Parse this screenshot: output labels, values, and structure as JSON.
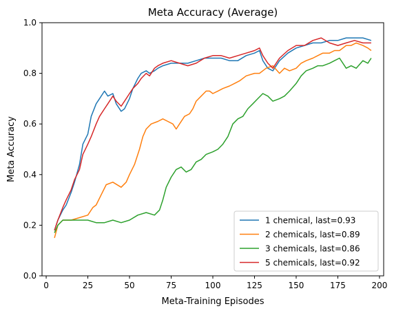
{
  "chart_data": {
    "type": "line",
    "title": "Meta Accuracy (Average)",
    "xlabel": "Meta-Training Episodes",
    "ylabel": "Meta Accuracy",
    "xlim": [
      -2.5,
      202.5
    ],
    "ylim": [
      0.0,
      1.0
    ],
    "xticks": [
      0,
      25,
      50,
      75,
      100,
      125,
      150,
      175,
      200
    ],
    "xtick_labels": [
      "0",
      "25",
      "50",
      "75",
      "100",
      "125",
      "150",
      "175",
      "200"
    ],
    "yticks": [
      0.0,
      0.2,
      0.4,
      0.6,
      0.8,
      1.0
    ],
    "ytick_labels": [
      "0.0",
      "0.2",
      "0.4",
      "0.6",
      "0.8",
      "1.0"
    ],
    "grid": false,
    "legend_position": "lower right",
    "series": [
      {
        "name": "1 chemical, last=0.93",
        "color": "#1f77b4",
        "points": [
          [
            5,
            0.18
          ],
          [
            7,
            0.22
          ],
          [
            10,
            0.26
          ],
          [
            12,
            0.28
          ],
          [
            15,
            0.33
          ],
          [
            17,
            0.37
          ],
          [
            20,
            0.44
          ],
          [
            22,
            0.52
          ],
          [
            25,
            0.56
          ],
          [
            27,
            0.63
          ],
          [
            30,
            0.68
          ],
          [
            32,
            0.7
          ],
          [
            35,
            0.73
          ],
          [
            37,
            0.71
          ],
          [
            40,
            0.72
          ],
          [
            42,
            0.68
          ],
          [
            45,
            0.65
          ],
          [
            47,
            0.66
          ],
          [
            50,
            0.7
          ],
          [
            52,
            0.74
          ],
          [
            55,
            0.78
          ],
          [
            57,
            0.8
          ],
          [
            60,
            0.81
          ],
          [
            62,
            0.8
          ],
          [
            65,
            0.81
          ],
          [
            67,
            0.82
          ],
          [
            70,
            0.83
          ],
          [
            75,
            0.84
          ],
          [
            80,
            0.84
          ],
          [
            85,
            0.84
          ],
          [
            90,
            0.85
          ],
          [
            95,
            0.86
          ],
          [
            100,
            0.86
          ],
          [
            105,
            0.86
          ],
          [
            110,
            0.85
          ],
          [
            115,
            0.85
          ],
          [
            120,
            0.87
          ],
          [
            125,
            0.88
          ],
          [
            128,
            0.89
          ],
          [
            130,
            0.85
          ],
          [
            133,
            0.82
          ],
          [
            136,
            0.81
          ],
          [
            140,
            0.85
          ],
          [
            145,
            0.88
          ],
          [
            150,
            0.9
          ],
          [
            155,
            0.91
          ],
          [
            160,
            0.92
          ],
          [
            165,
            0.92
          ],
          [
            170,
            0.93
          ],
          [
            175,
            0.93
          ],
          [
            180,
            0.94
          ],
          [
            185,
            0.94
          ],
          [
            190,
            0.94
          ],
          [
            195,
            0.93
          ]
        ]
      },
      {
        "name": "2 chemicals, last=0.89",
        "color": "#ff7f0e",
        "points": [
          [
            5,
            0.15
          ],
          [
            7,
            0.2
          ],
          [
            10,
            0.22
          ],
          [
            15,
            0.22
          ],
          [
            20,
            0.23
          ],
          [
            25,
            0.24
          ],
          [
            28,
            0.27
          ],
          [
            30,
            0.28
          ],
          [
            33,
            0.32
          ],
          [
            36,
            0.36
          ],
          [
            40,
            0.37
          ],
          [
            45,
            0.35
          ],
          [
            48,
            0.37
          ],
          [
            50,
            0.4
          ],
          [
            53,
            0.44
          ],
          [
            56,
            0.5
          ],
          [
            58,
            0.55
          ],
          [
            60,
            0.58
          ],
          [
            63,
            0.6
          ],
          [
            67,
            0.61
          ],
          [
            70,
            0.62
          ],
          [
            73,
            0.61
          ],
          [
            76,
            0.6
          ],
          [
            78,
            0.58
          ],
          [
            80,
            0.6
          ],
          [
            83,
            0.63
          ],
          [
            86,
            0.64
          ],
          [
            88,
            0.66
          ],
          [
            90,
            0.69
          ],
          [
            93,
            0.71
          ],
          [
            96,
            0.73
          ],
          [
            98,
            0.73
          ],
          [
            100,
            0.72
          ],
          [
            103,
            0.73
          ],
          [
            106,
            0.74
          ],
          [
            110,
            0.75
          ],
          [
            113,
            0.76
          ],
          [
            116,
            0.77
          ],
          [
            120,
            0.79
          ],
          [
            125,
            0.8
          ],
          [
            128,
            0.8
          ],
          [
            132,
            0.82
          ],
          [
            136,
            0.83
          ],
          [
            140,
            0.8
          ],
          [
            143,
            0.82
          ],
          [
            146,
            0.81
          ],
          [
            150,
            0.82
          ],
          [
            153,
            0.84
          ],
          [
            156,
            0.85
          ],
          [
            160,
            0.86
          ],
          [
            163,
            0.87
          ],
          [
            166,
            0.88
          ],
          [
            170,
            0.88
          ],
          [
            173,
            0.89
          ],
          [
            176,
            0.89
          ],
          [
            180,
            0.91
          ],
          [
            183,
            0.91
          ],
          [
            186,
            0.92
          ],
          [
            190,
            0.91
          ],
          [
            193,
            0.9
          ],
          [
            195,
            0.89
          ]
        ]
      },
      {
        "name": "3 chemicals, last=0.86",
        "color": "#2ca02c",
        "points": [
          [
            5,
            0.17
          ],
          [
            7,
            0.2
          ],
          [
            10,
            0.22
          ],
          [
            15,
            0.22
          ],
          [
            20,
            0.22
          ],
          [
            25,
            0.22
          ],
          [
            30,
            0.21
          ],
          [
            35,
            0.21
          ],
          [
            40,
            0.22
          ],
          [
            45,
            0.21
          ],
          [
            50,
            0.22
          ],
          [
            55,
            0.24
          ],
          [
            60,
            0.25
          ],
          [
            65,
            0.24
          ],
          [
            68,
            0.26
          ],
          [
            70,
            0.3
          ],
          [
            72,
            0.35
          ],
          [
            75,
            0.39
          ],
          [
            78,
            0.42
          ],
          [
            81,
            0.43
          ],
          [
            84,
            0.41
          ],
          [
            87,
            0.42
          ],
          [
            90,
            0.45
          ],
          [
            93,
            0.46
          ],
          [
            96,
            0.48
          ],
          [
            100,
            0.49
          ],
          [
            103,
            0.5
          ],
          [
            106,
            0.52
          ],
          [
            109,
            0.55
          ],
          [
            112,
            0.6
          ],
          [
            115,
            0.62
          ],
          [
            118,
            0.63
          ],
          [
            121,
            0.66
          ],
          [
            124,
            0.68
          ],
          [
            127,
            0.7
          ],
          [
            130,
            0.72
          ],
          [
            133,
            0.71
          ],
          [
            136,
            0.69
          ],
          [
            140,
            0.7
          ],
          [
            143,
            0.71
          ],
          [
            146,
            0.73
          ],
          [
            150,
            0.76
          ],
          [
            153,
            0.79
          ],
          [
            156,
            0.81
          ],
          [
            160,
            0.82
          ],
          [
            163,
            0.83
          ],
          [
            166,
            0.83
          ],
          [
            170,
            0.84
          ],
          [
            173,
            0.85
          ],
          [
            176,
            0.86
          ],
          [
            180,
            0.82
          ],
          [
            183,
            0.83
          ],
          [
            186,
            0.82
          ],
          [
            190,
            0.85
          ],
          [
            193,
            0.84
          ],
          [
            195,
            0.86
          ]
        ]
      },
      {
        "name": "5 chemicals, last=0.92",
        "color": "#d62728",
        "points": [
          [
            5,
            0.18
          ],
          [
            7,
            0.22
          ],
          [
            10,
            0.27
          ],
          [
            12,
            0.3
          ],
          [
            15,
            0.34
          ],
          [
            17,
            0.38
          ],
          [
            20,
            0.42
          ],
          [
            22,
            0.48
          ],
          [
            25,
            0.52
          ],
          [
            27,
            0.55
          ],
          [
            30,
            0.6
          ],
          [
            32,
            0.63
          ],
          [
            35,
            0.66
          ],
          [
            37,
            0.68
          ],
          [
            40,
            0.71
          ],
          [
            42,
            0.69
          ],
          [
            45,
            0.67
          ],
          [
            47,
            0.69
          ],
          [
            50,
            0.72
          ],
          [
            52,
            0.74
          ],
          [
            55,
            0.76
          ],
          [
            57,
            0.78
          ],
          [
            60,
            0.8
          ],
          [
            62,
            0.79
          ],
          [
            65,
            0.82
          ],
          [
            67,
            0.83
          ],
          [
            70,
            0.84
          ],
          [
            75,
            0.85
          ],
          [
            80,
            0.84
          ],
          [
            85,
            0.83
          ],
          [
            90,
            0.84
          ],
          [
            95,
            0.86
          ],
          [
            100,
            0.87
          ],
          [
            105,
            0.87
          ],
          [
            110,
            0.86
          ],
          [
            115,
            0.87
          ],
          [
            120,
            0.88
          ],
          [
            125,
            0.89
          ],
          [
            128,
            0.9
          ],
          [
            130,
            0.87
          ],
          [
            133,
            0.84
          ],
          [
            136,
            0.82
          ],
          [
            140,
            0.86
          ],
          [
            145,
            0.89
          ],
          [
            150,
            0.91
          ],
          [
            155,
            0.91
          ],
          [
            160,
            0.93
          ],
          [
            165,
            0.94
          ],
          [
            170,
            0.92
          ],
          [
            175,
            0.91
          ],
          [
            180,
            0.92
          ],
          [
            185,
            0.93
          ],
          [
            190,
            0.92
          ],
          [
            195,
            0.92
          ]
        ]
      }
    ]
  }
}
